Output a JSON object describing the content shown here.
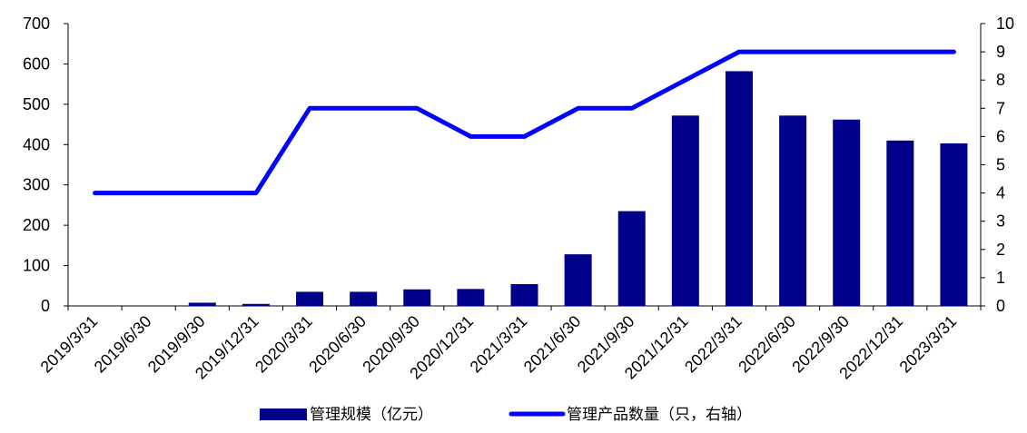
{
  "chart_data": {
    "type": "bar",
    "title": "",
    "xlabel": "",
    "ylabel": "",
    "categories": [
      "2019/3/31",
      "2019/6/30",
      "2019/9/30",
      "2019/12/31",
      "2020/3/31",
      "2020/6/30",
      "2020/9/30",
      "2020/12/31",
      "2021/3/31",
      "2021/6/30",
      "2021/9/30",
      "2021/12/31",
      "2022/3/31",
      "2022/6/30",
      "2022/9/30",
      "2022/12/31",
      "2023/3/31"
    ],
    "ylim": [
      0,
      700
    ],
    "y_ticks": [
      0,
      100,
      200,
      300,
      400,
      500,
      600,
      700
    ],
    "y2lim": [
      0,
      10
    ],
    "y2_ticks": [
      0,
      1,
      2,
      3,
      4,
      5,
      6,
      7,
      8,
      9,
      10
    ],
    "grid": false,
    "legend_position": "bottom",
    "series": [
      {
        "name": "管理规模（亿元）",
        "type": "bar",
        "axis": "left",
        "color": "#00008B",
        "values": [
          0,
          0,
          8,
          5,
          35,
          35,
          41,
          42,
          54,
          128,
          235,
          472,
          582,
          472,
          462,
          410,
          403
        ]
      },
      {
        "name": "管理产品数量（只，右轴）",
        "type": "line",
        "axis": "right",
        "color": "#0000FF",
        "values": [
          4,
          4,
          4,
          4,
          7,
          7,
          7,
          6,
          6,
          7,
          7,
          8,
          9,
          9,
          9,
          9,
          9
        ]
      }
    ]
  }
}
